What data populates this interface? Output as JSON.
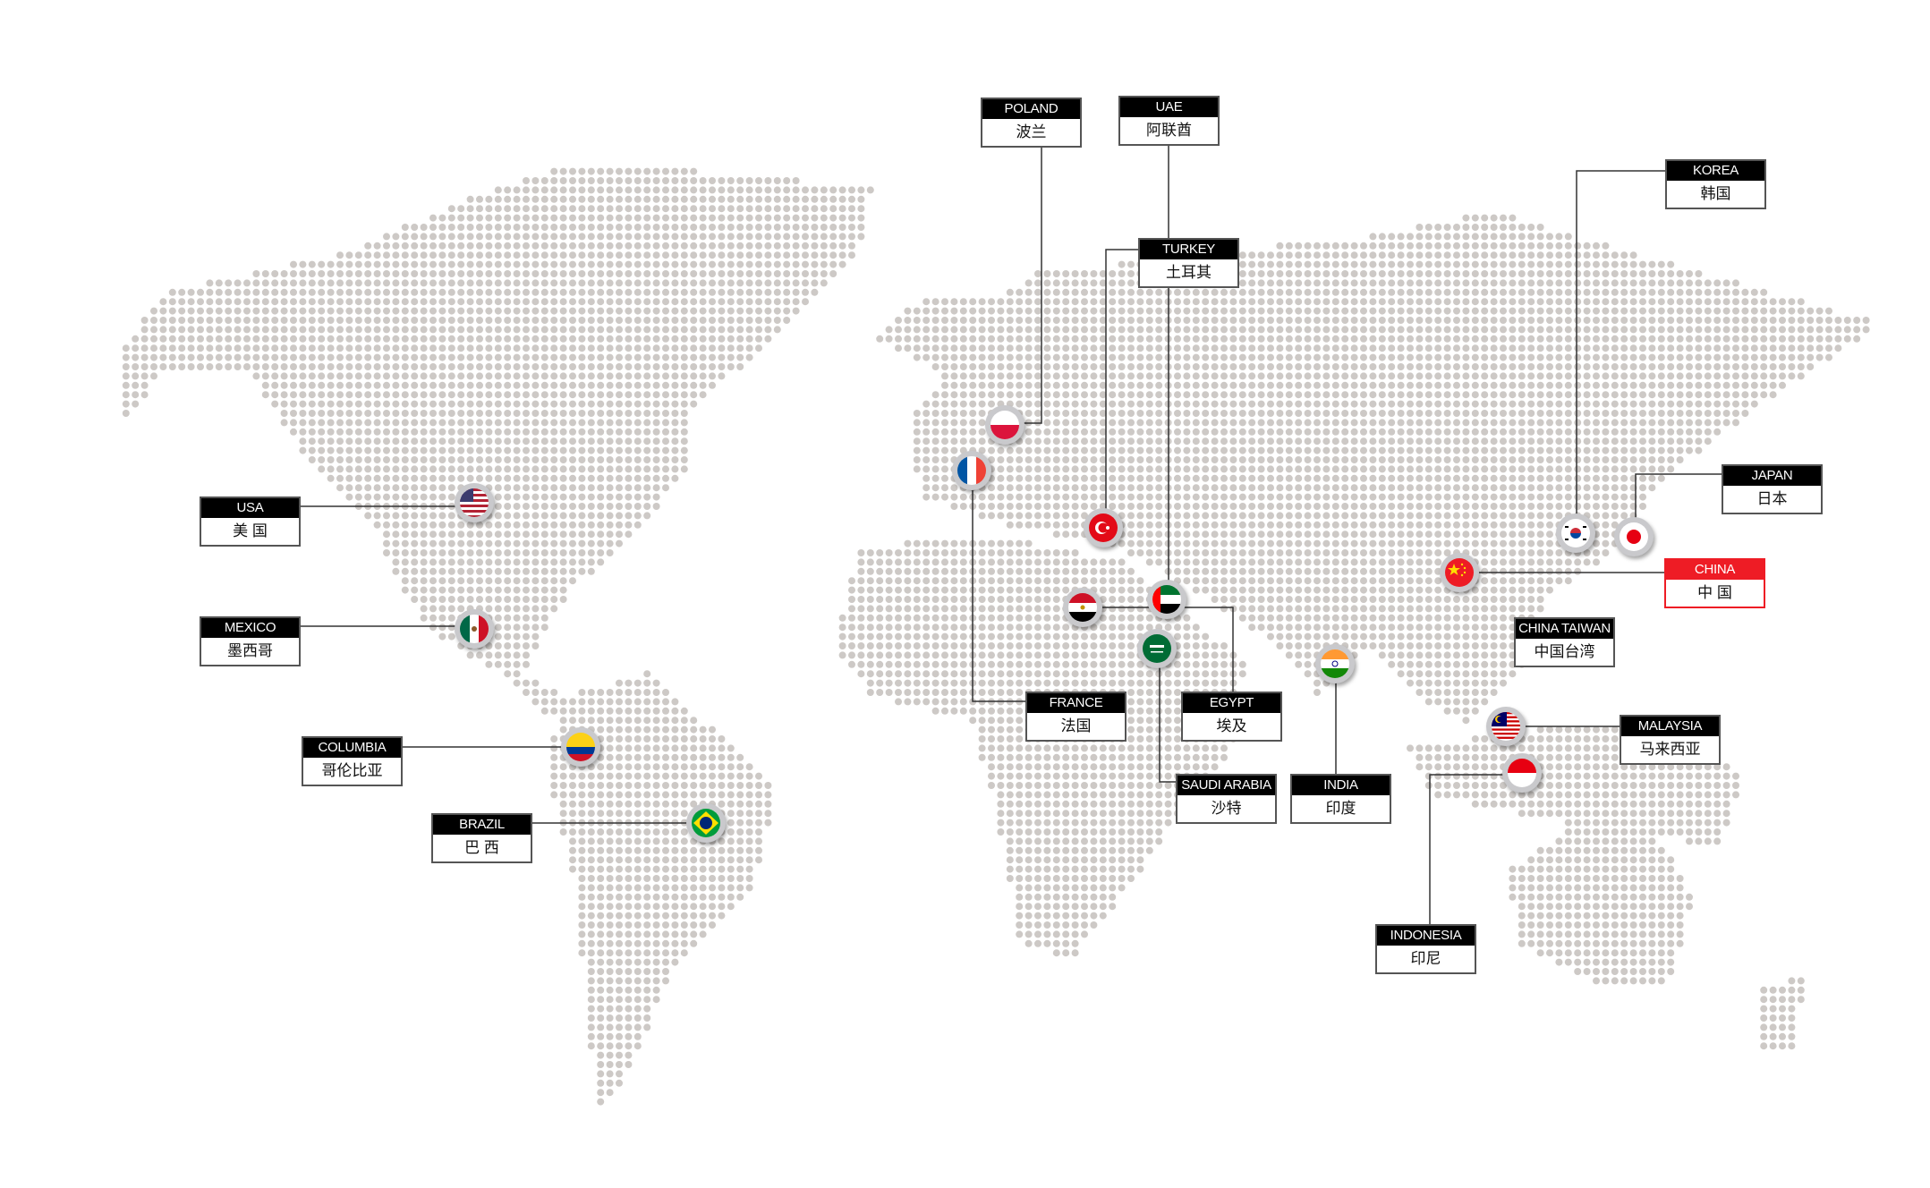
{
  "countries": [
    {
      "key": "usa",
      "en": "USA",
      "cn": "美 国",
      "flag": "us-flag-icon"
    },
    {
      "key": "mexico",
      "en": "MEXICO",
      "cn": "墨西哥",
      "flag": "mexico-flag-icon"
    },
    {
      "key": "columbia",
      "en": "COLUMBIA",
      "cn": "哥伦比亚",
      "flag": "colombia-flag-icon"
    },
    {
      "key": "brazil",
      "en": "BRAZIL",
      "cn": "巴 西",
      "flag": "brazil-flag-icon"
    },
    {
      "key": "poland",
      "en": "POLAND",
      "cn": "波兰",
      "flag": "poland-flag-icon"
    },
    {
      "key": "uae",
      "en": "UAE",
      "cn": "阿联酋",
      "flag": "uae-flag-icon"
    },
    {
      "key": "turkey",
      "en": "TURKEY",
      "cn": "土耳其",
      "flag": "turkey-flag-icon"
    },
    {
      "key": "korea",
      "en": "KOREA",
      "cn": "韩国",
      "flag": "korea-flag-icon"
    },
    {
      "key": "japan",
      "en": "JAPAN",
      "cn": "日本",
      "flag": "japan-flag-icon"
    },
    {
      "key": "china",
      "en": "CHINA",
      "cn": "中 国",
      "flag": "china-flag-icon",
      "highlight": "#ee1c25"
    },
    {
      "key": "taiwan",
      "en": "CHINA TAIWAN",
      "cn": "中国台湾"
    },
    {
      "key": "malaysia",
      "en": "MALAYSIA",
      "cn": "马来西亚",
      "flag": "malaysia-flag-icon"
    },
    {
      "key": "indonesia",
      "en": "INDONESIA",
      "cn": "印尼",
      "flag": "indonesia-flag-icon"
    },
    {
      "key": "india",
      "en": "INDIA",
      "cn": "印度",
      "flag": "india-flag-icon"
    },
    {
      "key": "saudi",
      "en": "SAUDI ARABIA",
      "cn": "沙特",
      "flag": "saudi-flag-icon"
    },
    {
      "key": "egypt",
      "en": "EGYPT",
      "cn": "埃及",
      "flag": "egypt-flag-icon"
    },
    {
      "key": "france",
      "en": "FRANCE",
      "cn": "法国",
      "flag": "france-flag-icon"
    }
  ],
  "colors": {
    "dots": "#cdc9c6",
    "label_header": "#000000",
    "highlight": "#ee1c25",
    "connector": "#333333"
  }
}
